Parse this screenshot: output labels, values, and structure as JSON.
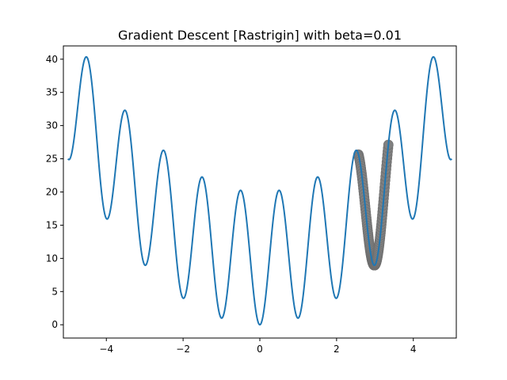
{
  "chart_data": {
    "type": "line",
    "title": "Gradient Descent [Rastrigin] with beta=0.01",
    "xlabel": "",
    "ylabel": "",
    "xlim": [
      -5.12,
      5.12
    ],
    "ylim": [
      -2.0,
      42.0
    ],
    "x_ticks": [
      -4,
      -2,
      0,
      2,
      4
    ],
    "x_tick_labels": [
      "−4",
      "−2",
      "0",
      "2",
      "4"
    ],
    "y_ticks": [
      0,
      5,
      10,
      15,
      20,
      25,
      30,
      35,
      40
    ],
    "y_tick_labels": [
      "0",
      "5",
      "10",
      "15",
      "20",
      "25",
      "30",
      "35",
      "40"
    ],
    "grid": false,
    "series": [
      {
        "function": "10 + x^2 - 10*cos(2*pi*x)",
        "x_range": [
          -5,
          5
        ],
        "color": "#1f77b4"
      },
      {
        "style": "markers",
        "color": "#808080",
        "x_range": [
          2.57,
          3.35
        ],
        "descent_minimum_x": 2.99
      }
    ]
  }
}
